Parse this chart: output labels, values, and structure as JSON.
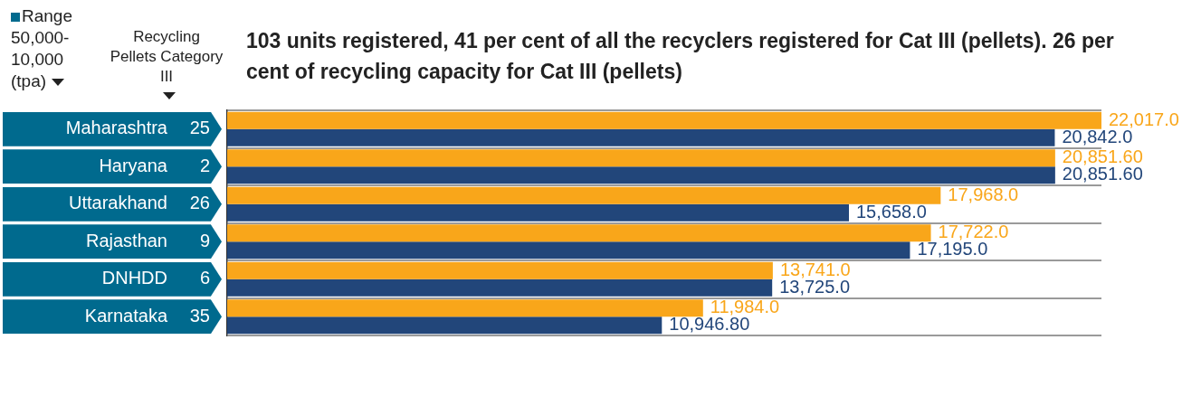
{
  "chart_data": {
    "type": "bar",
    "orientation": "horizontal",
    "grid": "y",
    "title": "103 units registered, 41 per cent of all the recyclers registered for Cat III (pellets). 26 per cent of recycling capacity for Cat III (pellets)",
    "categories": [
      "Maharashtra",
      "Haryana",
      "Uttarakhand",
      "Rajasthan",
      "DNHDD",
      "Karnataka"
    ],
    "series": [
      {
        "color": "#f9a61a",
        "values": [
          22017.0,
          20851.6,
          17968.0,
          17722.0,
          13741.0,
          11984.0
        ],
        "value_labels": [
          "22,017.0",
          "20,851.60",
          "17,968.0",
          "17,722.0",
          "13,741.0",
          "11,984.0"
        ]
      },
      {
        "color": "#22467a",
        "values": [
          20842.0,
          20851.6,
          15658.0,
          17195.0,
          13725.0,
          10946.8
        ],
        "value_labels": [
          "20,842.0",
          "20,851.60",
          "15,658.0",
          "17,195.0",
          "13,725.0",
          "10,946.80"
        ]
      }
    ],
    "annotations": [
      "Range 50,000-10,000 (tpa)",
      "Recycling Pellets Category III",
      "25",
      "2",
      "26",
      "9",
      "6",
      "35"
    ]
  }
}
